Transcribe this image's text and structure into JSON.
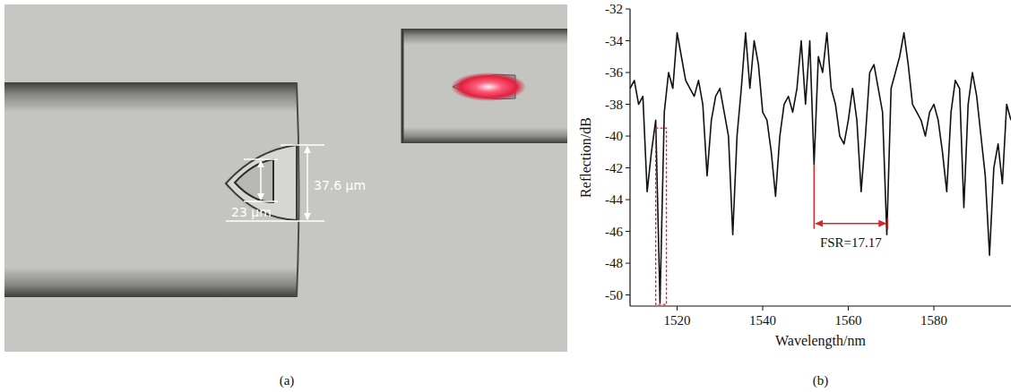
{
  "photo": {
    "panel_label": "(a)",
    "dimension_labels": [
      "37.6 μm",
      "23 μm"
    ]
  },
  "chart_data": {
    "type": "line",
    "panel_label": "(b)",
    "x_label": "Wavelength/nm",
    "y_label": "Reflection/dB",
    "x": [
      1509,
      1510,
      1511,
      1512,
      1513,
      1514,
      1515,
      1516,
      1517,
      1518,
      1519,
      1520,
      1521,
      1522,
      1523,
      1524,
      1525,
      1526,
      1527,
      1528,
      1529,
      1530,
      1531,
      1532,
      1533,
      1534,
      1535,
      1536,
      1537,
      1538,
      1539,
      1540,
      1541,
      1542,
      1543,
      1544,
      1545,
      1546,
      1547,
      1548,
      1549,
      1550,
      1551,
      1552,
      1553,
      1554,
      1555,
      1556,
      1557,
      1558,
      1559,
      1560,
      1561,
      1562,
      1563,
      1564,
      1565,
      1566,
      1567,
      1568,
      1569,
      1570,
      1571,
      1572,
      1573,
      1574,
      1575,
      1576,
      1577,
      1578,
      1579,
      1580,
      1581,
      1582,
      1583,
      1584,
      1585,
      1586,
      1587,
      1588,
      1589,
      1590,
      1591,
      1592,
      1593,
      1594,
      1595,
      1596,
      1597,
      1598
    ],
    "series": [
      {
        "color": "#111111",
        "values": [
          -37,
          -36.5,
          -38,
          -37.5,
          -43.5,
          -41,
          -39,
          -50.5,
          -38.5,
          -36,
          -37,
          -33.5,
          -35,
          -36.5,
          -37,
          -37.5,
          -36.5,
          -38,
          -42.5,
          -39,
          -37.5,
          -37,
          -38.5,
          -40,
          -46.2,
          -40,
          -37,
          -33.5,
          -37,
          -34,
          -35.5,
          -38.5,
          -39,
          -41,
          -43.8,
          -40,
          -38,
          -37.5,
          -38.5,
          -37,
          -34,
          -38,
          -34,
          -41.8,
          -35,
          -36,
          -33.5,
          -37,
          -38,
          -40,
          -40.5,
          -39,
          -37,
          -39,
          -43.5,
          -40,
          -36,
          -35.5,
          -37,
          -38.5,
          -46.2,
          -37,
          -36,
          -35,
          -33.5,
          -35.5,
          -38,
          -38.5,
          -39,
          -40,
          -38.5,
          -38,
          -39,
          -41,
          -43.5,
          -38.5,
          -36.5,
          -37,
          -44.5,
          -38,
          -36,
          -37.5,
          -40,
          -42.5,
          -47.5,
          -42,
          -40.5,
          -43,
          -38,
          -39
        ]
      }
    ],
    "xlim": [
      1509,
      1598
    ],
    "ylim": [
      -50.7,
      -32
    ],
    "xticks": [
      1520,
      1540,
      1560,
      1580
    ],
    "yticks": [
      -50,
      -48,
      -46,
      -44,
      -42,
      -40,
      -38,
      -36,
      -34,
      -32
    ],
    "grid": false,
    "annotations": [
      {
        "text": "FSR=17.17",
        "x": 1552,
        "x2": 1569.17,
        "y": -45.5,
        "y_top": -41.8,
        "color": "#d62728"
      }
    ],
    "highlight": {
      "x": [
        1515,
        1517.5
      ],
      "y": [
        -50.6,
        -39.5
      ],
      "color": "#d62728",
      "line_style": "dashed"
    }
  }
}
